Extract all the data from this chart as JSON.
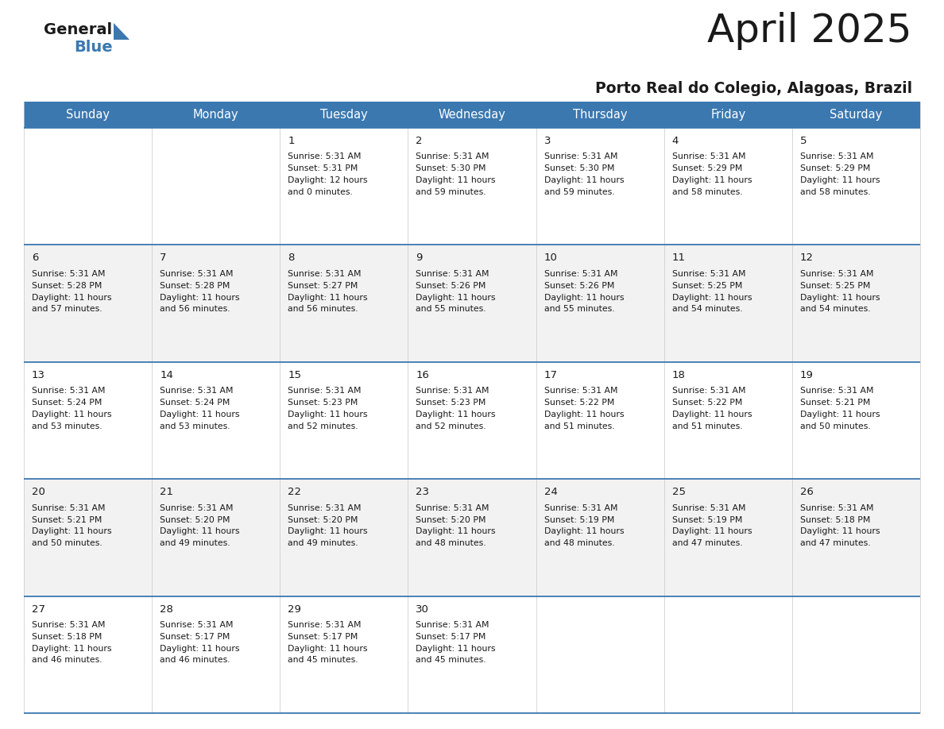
{
  "title": "April 2025",
  "subtitle": "Porto Real do Colegio, Alagoas, Brazil",
  "header_bg": "#3b78b0",
  "header_text": "#ffffff",
  "row_bg_even": "#f2f2f2",
  "row_bg_odd": "#ffffff",
  "border_color": "#3b78b0",
  "days_of_week": [
    "Sunday",
    "Monday",
    "Tuesday",
    "Wednesday",
    "Thursday",
    "Friday",
    "Saturday"
  ],
  "title_color": "#1a1a1a",
  "subtitle_color": "#1a1a1a",
  "cell_text_color": "#1a1a1a",
  "day_number_color": "#1a1a1a",
  "logo_general_color": "#1a1a1a",
  "logo_blue_color": "#3b78b0",
  "logo_triangle_color": "#3b78b0",
  "calendar": [
    [
      null,
      null,
      {
        "day": 1,
        "sunrise": "5:31 AM",
        "sunset": "5:31 PM",
        "daylight_h": "12 hours",
        "daylight_m": "and 0 minutes."
      },
      {
        "day": 2,
        "sunrise": "5:31 AM",
        "sunset": "5:30 PM",
        "daylight_h": "11 hours",
        "daylight_m": "and 59 minutes."
      },
      {
        "day": 3,
        "sunrise": "5:31 AM",
        "sunset": "5:30 PM",
        "daylight_h": "11 hours",
        "daylight_m": "and 59 minutes."
      },
      {
        "day": 4,
        "sunrise": "5:31 AM",
        "sunset": "5:29 PM",
        "daylight_h": "11 hours",
        "daylight_m": "and 58 minutes."
      },
      {
        "day": 5,
        "sunrise": "5:31 AM",
        "sunset": "5:29 PM",
        "daylight_h": "11 hours",
        "daylight_m": "and 58 minutes."
      }
    ],
    [
      {
        "day": 6,
        "sunrise": "5:31 AM",
        "sunset": "5:28 PM",
        "daylight_h": "11 hours",
        "daylight_m": "and 57 minutes."
      },
      {
        "day": 7,
        "sunrise": "5:31 AM",
        "sunset": "5:28 PM",
        "daylight_h": "11 hours",
        "daylight_m": "and 56 minutes."
      },
      {
        "day": 8,
        "sunrise": "5:31 AM",
        "sunset": "5:27 PM",
        "daylight_h": "11 hours",
        "daylight_m": "and 56 minutes."
      },
      {
        "day": 9,
        "sunrise": "5:31 AM",
        "sunset": "5:26 PM",
        "daylight_h": "11 hours",
        "daylight_m": "and 55 minutes."
      },
      {
        "day": 10,
        "sunrise": "5:31 AM",
        "sunset": "5:26 PM",
        "daylight_h": "11 hours",
        "daylight_m": "and 55 minutes."
      },
      {
        "day": 11,
        "sunrise": "5:31 AM",
        "sunset": "5:25 PM",
        "daylight_h": "11 hours",
        "daylight_m": "and 54 minutes."
      },
      {
        "day": 12,
        "sunrise": "5:31 AM",
        "sunset": "5:25 PM",
        "daylight_h": "11 hours",
        "daylight_m": "and 54 minutes."
      }
    ],
    [
      {
        "day": 13,
        "sunrise": "5:31 AM",
        "sunset": "5:24 PM",
        "daylight_h": "11 hours",
        "daylight_m": "and 53 minutes."
      },
      {
        "day": 14,
        "sunrise": "5:31 AM",
        "sunset": "5:24 PM",
        "daylight_h": "11 hours",
        "daylight_m": "and 53 minutes."
      },
      {
        "day": 15,
        "sunrise": "5:31 AM",
        "sunset": "5:23 PM",
        "daylight_h": "11 hours",
        "daylight_m": "and 52 minutes."
      },
      {
        "day": 16,
        "sunrise": "5:31 AM",
        "sunset": "5:23 PM",
        "daylight_h": "11 hours",
        "daylight_m": "and 52 minutes."
      },
      {
        "day": 17,
        "sunrise": "5:31 AM",
        "sunset": "5:22 PM",
        "daylight_h": "11 hours",
        "daylight_m": "and 51 minutes."
      },
      {
        "day": 18,
        "sunrise": "5:31 AM",
        "sunset": "5:22 PM",
        "daylight_h": "11 hours",
        "daylight_m": "and 51 minutes."
      },
      {
        "day": 19,
        "sunrise": "5:31 AM",
        "sunset": "5:21 PM",
        "daylight_h": "11 hours",
        "daylight_m": "and 50 minutes."
      }
    ],
    [
      {
        "day": 20,
        "sunrise": "5:31 AM",
        "sunset": "5:21 PM",
        "daylight_h": "11 hours",
        "daylight_m": "and 50 minutes."
      },
      {
        "day": 21,
        "sunrise": "5:31 AM",
        "sunset": "5:20 PM",
        "daylight_h": "11 hours",
        "daylight_m": "and 49 minutes."
      },
      {
        "day": 22,
        "sunrise": "5:31 AM",
        "sunset": "5:20 PM",
        "daylight_h": "11 hours",
        "daylight_m": "and 49 minutes."
      },
      {
        "day": 23,
        "sunrise": "5:31 AM",
        "sunset": "5:20 PM",
        "daylight_h": "11 hours",
        "daylight_m": "and 48 minutes."
      },
      {
        "day": 24,
        "sunrise": "5:31 AM",
        "sunset": "5:19 PM",
        "daylight_h": "11 hours",
        "daylight_m": "and 48 minutes."
      },
      {
        "day": 25,
        "sunrise": "5:31 AM",
        "sunset": "5:19 PM",
        "daylight_h": "11 hours",
        "daylight_m": "and 47 minutes."
      },
      {
        "day": 26,
        "sunrise": "5:31 AM",
        "sunset": "5:18 PM",
        "daylight_h": "11 hours",
        "daylight_m": "and 47 minutes."
      }
    ],
    [
      {
        "day": 27,
        "sunrise": "5:31 AM",
        "sunset": "5:18 PM",
        "daylight_h": "11 hours",
        "daylight_m": "and 46 minutes."
      },
      {
        "day": 28,
        "sunrise": "5:31 AM",
        "sunset": "5:17 PM",
        "daylight_h": "11 hours",
        "daylight_m": "and 46 minutes."
      },
      {
        "day": 29,
        "sunrise": "5:31 AM",
        "sunset": "5:17 PM",
        "daylight_h": "11 hours",
        "daylight_m": "and 45 minutes."
      },
      {
        "day": 30,
        "sunrise": "5:31 AM",
        "sunset": "5:17 PM",
        "daylight_h": "11 hours",
        "daylight_m": "and 45 minutes."
      },
      null,
      null,
      null
    ]
  ]
}
